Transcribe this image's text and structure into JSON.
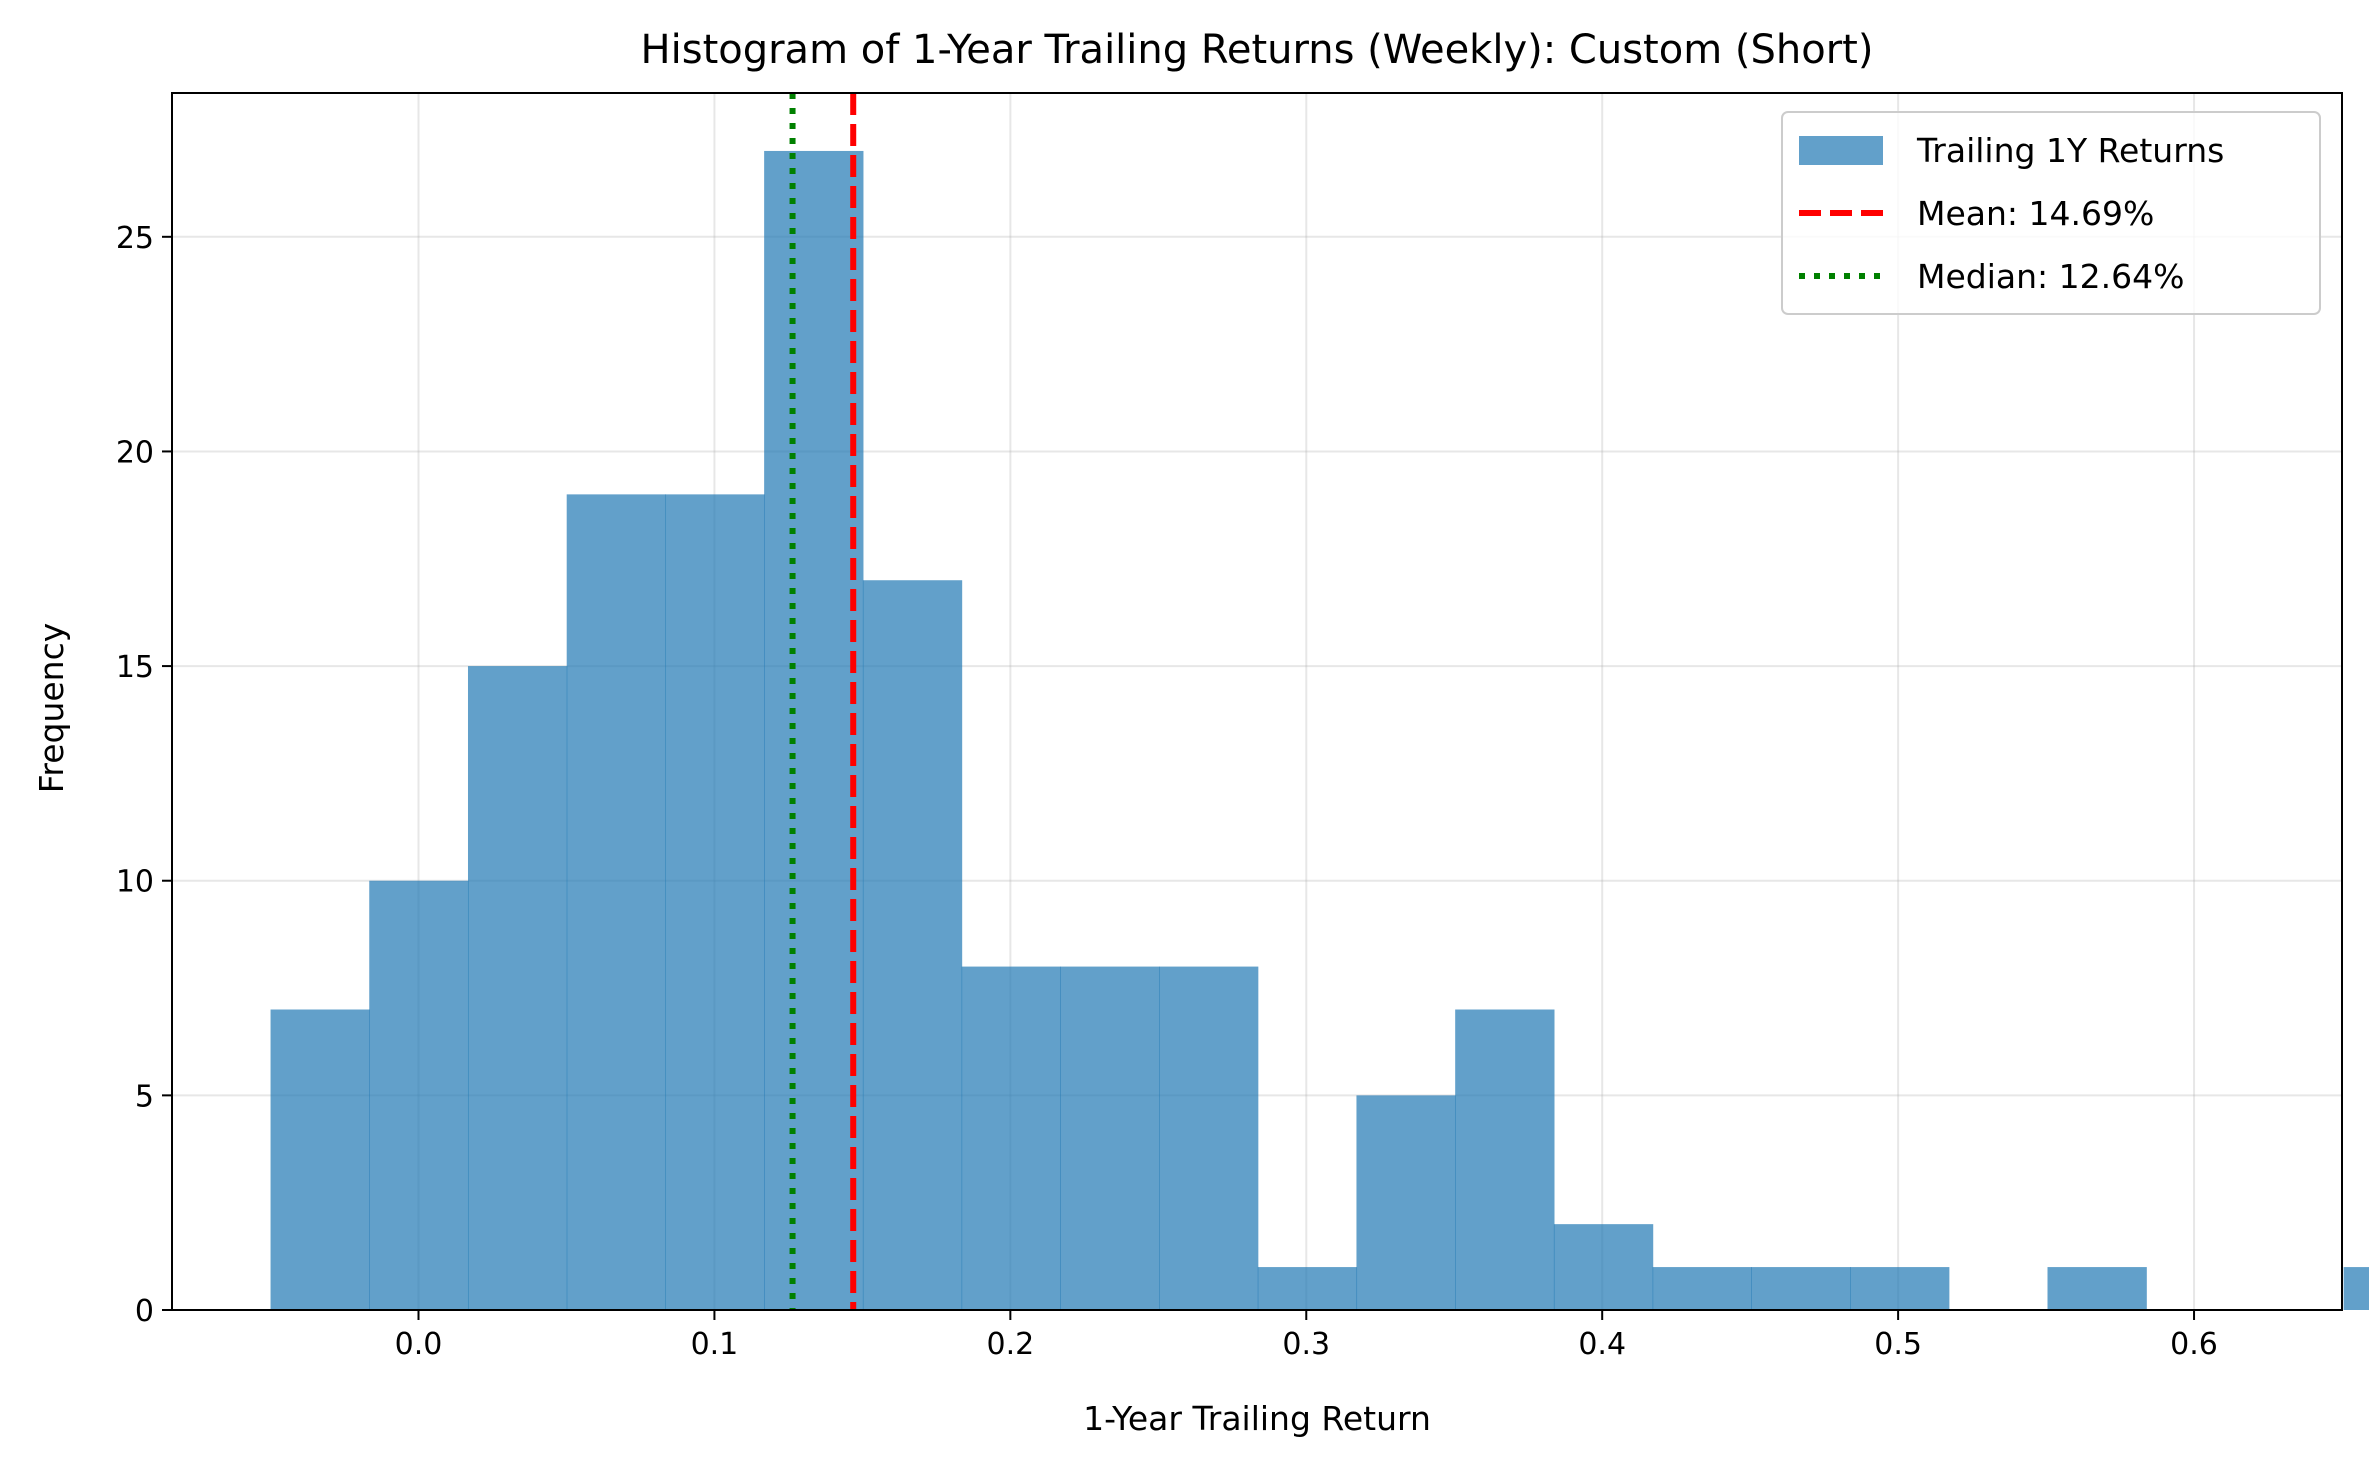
{
  "chart_data": {
    "type": "bar",
    "title": "Histogram of 1-Year Trailing Returns (Weekly): Custom (Short)",
    "xlabel": "1-Year Trailing Return",
    "ylabel": "Frequency",
    "xlim": [
      -0.0833,
      0.65
    ],
    "ylim": [
      0,
      28.35
    ],
    "grid": true,
    "legend_position": "top-right",
    "bar_color": "#1f77b4",
    "bar_opacity": 0.7,
    "bins": {
      "start": -0.05,
      "width": 0.03336,
      "counts": [
        7,
        10,
        15,
        19,
        19,
        27,
        17,
        8,
        8,
        8,
        1,
        5,
        7,
        2,
        1,
        1,
        1,
        0,
        1,
        0,
        0,
        1
      ]
    },
    "x_ticks": [
      {
        "value": 0.0,
        "label": "0.0"
      },
      {
        "value": 0.1,
        "label": "0.1"
      },
      {
        "value": 0.2,
        "label": "0.2"
      },
      {
        "value": 0.3,
        "label": "0.3"
      },
      {
        "value": 0.4,
        "label": "0.4"
      },
      {
        "value": 0.5,
        "label": "0.5"
      },
      {
        "value": 0.6,
        "label": "0.6"
      }
    ],
    "y_ticks": [
      {
        "value": 0,
        "label": "0"
      },
      {
        "value": 5,
        "label": "5"
      },
      {
        "value": 10,
        "label": "10"
      },
      {
        "value": 15,
        "label": "15"
      },
      {
        "value": 20,
        "label": "20"
      },
      {
        "value": 25,
        "label": "25"
      }
    ],
    "reference_lines": [
      {
        "name": "Mean: 14.69%",
        "value": 0.1469,
        "color": "#ff0000",
        "style": "dashed"
      },
      {
        "name": "Median: 12.64%",
        "value": 0.1264,
        "color": "#008000",
        "style": "dotted"
      }
    ],
    "legend": [
      {
        "label": "Trailing 1Y Returns",
        "kind": "patch",
        "color": "#1f77b4"
      },
      {
        "label": "Mean: 14.69%",
        "kind": "dashed",
        "color": "#ff0000"
      },
      {
        "label": "Median: 12.64%",
        "kind": "dotted",
        "color": "#008000"
      }
    ]
  }
}
